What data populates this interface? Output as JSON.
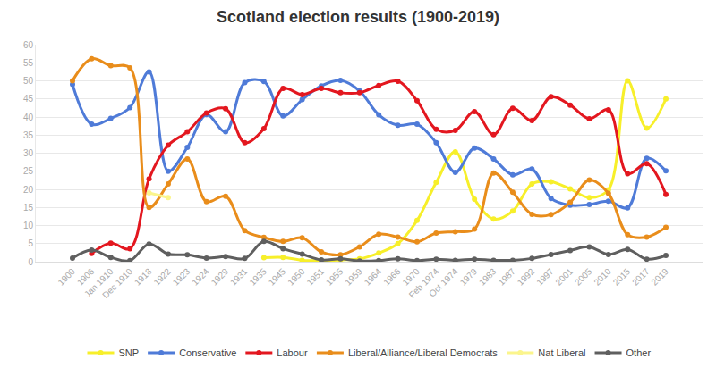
{
  "chart_data": {
    "type": "line",
    "title": "Scotland election results (1900-2019)",
    "categories": [
      "1900",
      "1906",
      "Jan 1910",
      "Dec 1910",
      "1918",
      "1922",
      "1923",
      "1924",
      "1929",
      "1931",
      "1935",
      "1945",
      "1950",
      "1951",
      "1955",
      "1959",
      "1964",
      "1966",
      "1970",
      "Feb 1974",
      "Oct 1974",
      "1979",
      "1983",
      "1987",
      "1992",
      "1997",
      "2001",
      "2005",
      "2010",
      "2015",
      "2017",
      "2019"
    ],
    "series": [
      {
        "name": "SNP",
        "color": "#f7ef2a",
        "values": [
          null,
          null,
          null,
          null,
          null,
          null,
          null,
          null,
          null,
          null,
          1.1,
          1.2,
          0.4,
          0.3,
          0.5,
          0.8,
          2.4,
          5,
          11.4,
          21.9,
          30.4,
          17.3,
          11.8,
          14,
          21.5,
          22.1,
          20.1,
          17.7,
          19.9,
          50,
          36.9,
          45
        ]
      },
      {
        "name": "Conservative",
        "color": "#4f7bd8",
        "values": [
          49,
          38,
          39.6,
          42.6,
          52.5,
          25,
          31.6,
          40.7,
          35.9,
          49.5,
          49.8,
          40.3,
          44.8,
          48.6,
          50.1,
          47.2,
          40.6,
          37.7,
          38,
          32.9,
          24.7,
          31.4,
          28.4,
          24,
          25.6,
          17.5,
          15.6,
          15.8,
          16.7,
          14.9,
          28.6,
          25.1
        ]
      },
      {
        "name": "Labour",
        "color": "#e3171f",
        "values": [
          null,
          2.3,
          5.1,
          3.6,
          22.9,
          32.2,
          35.9,
          41.1,
          42.3,
          32.9,
          36.8,
          47.9,
          46.2,
          47.9,
          46.7,
          46.7,
          48.7,
          49.9,
          44.5,
          36.6,
          36.3,
          41.5,
          35.1,
          42.4,
          39,
          45.6,
          43.3,
          39.5,
          42,
          24.3,
          27.1,
          18.6
        ]
      },
      {
        "name": "Liberal/Alliance/Liberal Democrats",
        "color": "#e98d1b",
        "values": [
          50,
          56.1,
          54.2,
          53.6,
          15,
          21.5,
          28.4,
          16.6,
          18.1,
          8.6,
          6.7,
          5.6,
          6.6,
          2.7,
          1.9,
          4.1,
          7.6,
          6.8,
          5.5,
          7.9,
          8.3,
          9,
          24.5,
          19.2,
          13.1,
          13,
          16.4,
          22.6,
          18.9,
          7.5,
          6.8,
          9.5
        ]
      },
      {
        "name": "Nat Liberal",
        "color": "#fbf58c",
        "values": [
          null,
          null,
          null,
          null,
          19,
          17.7,
          null,
          null,
          null,
          null,
          null,
          null,
          null,
          null,
          null,
          null,
          null,
          null,
          null,
          null,
          null,
          null,
          null,
          null,
          null,
          null,
          null,
          null,
          null,
          null,
          null,
          null
        ]
      },
      {
        "name": "Other",
        "color": "#5f5f5f",
        "values": [
          1,
          3.2,
          1.2,
          0.3,
          4.9,
          2.1,
          1.9,
          1,
          1.4,
          0.9,
          5.6,
          3.6,
          2.1,
          0.5,
          0.8,
          0.2,
          0.3,
          0.8,
          0.3,
          0.7,
          0.4,
          0.7,
          0.4,
          0.4,
          0.9,
          2,
          3.1,
          4.1,
          2,
          3.4,
          0.7,
          1.7
        ]
      }
    ],
    "ylim": [
      0,
      60
    ],
    "yticks": [
      0,
      5,
      10,
      15,
      20,
      25,
      30,
      35,
      40,
      45,
      50,
      55,
      60
    ],
    "grid": true,
    "legend": "bottom",
    "marker": "circle",
    "line_style": "smooth"
  }
}
